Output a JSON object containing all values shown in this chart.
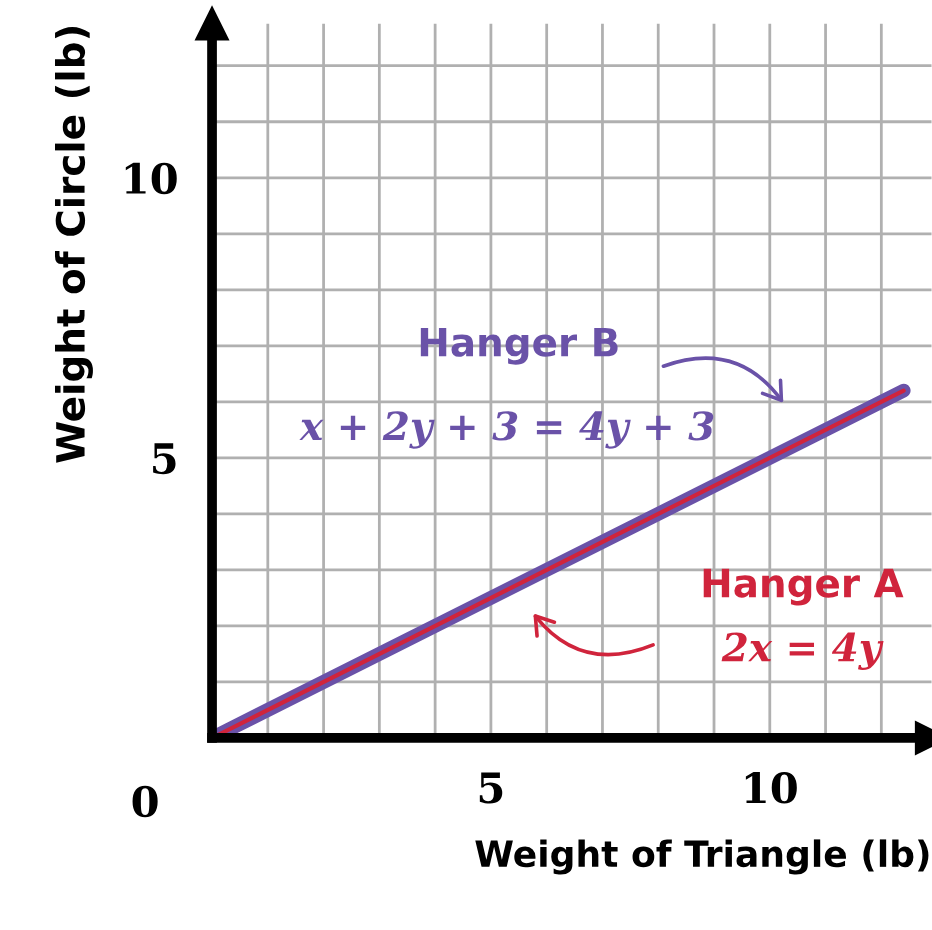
{
  "chart_data": {
    "type": "line",
    "xlabel": "Weight of Triangle (lb)",
    "ylabel": "Weight of Circle (lb)",
    "x": [
      0,
      12.4
    ],
    "series": [
      {
        "name": "Hanger B",
        "color": "#6a52a8",
        "values": [
          0,
          6.2
        ]
      },
      {
        "name": "Hanger A",
        "color": "#d0243c",
        "values": [
          0,
          6.2
        ]
      }
    ],
    "xlim": [
      0,
      12.9
    ],
    "ylim": [
      0,
      12.75
    ],
    "xticks": [
      {
        "value": 1,
        "label": null
      },
      {
        "value": 2,
        "label": null
      },
      {
        "value": 3,
        "label": null
      },
      {
        "value": 4,
        "label": null
      },
      5,
      {
        "value": 6,
        "label": null
      },
      {
        "value": 7,
        "label": null
      },
      {
        "value": 8,
        "label": null
      },
      {
        "value": 9,
        "label": null
      },
      10,
      {
        "value": 11,
        "label": null
      },
      {
        "value": 12,
        "label": null
      }
    ],
    "yticks": [
      {
        "value": 1,
        "label": null
      },
      {
        "value": 2,
        "label": null
      },
      {
        "value": 3,
        "label": null
      },
      {
        "value": 4,
        "label": null
      },
      5,
      {
        "value": 6,
        "label": null
      },
      {
        "value": 7,
        "label": null
      },
      {
        "value": 8,
        "label": null
      },
      {
        "value": 9,
        "label": null
      },
      10,
      {
        "value": 11,
        "label": null
      },
      {
        "value": 12,
        "label": null
      }
    ],
    "grid": true,
    "legend": false,
    "marker": "none",
    "line_style": "solid",
    "annotations": [
      {
        "text": "0",
        "x": 0,
        "y": 0
      },
      "x + 2y + 3 = 4y + 3",
      "2x = 4y"
    ]
  }
}
